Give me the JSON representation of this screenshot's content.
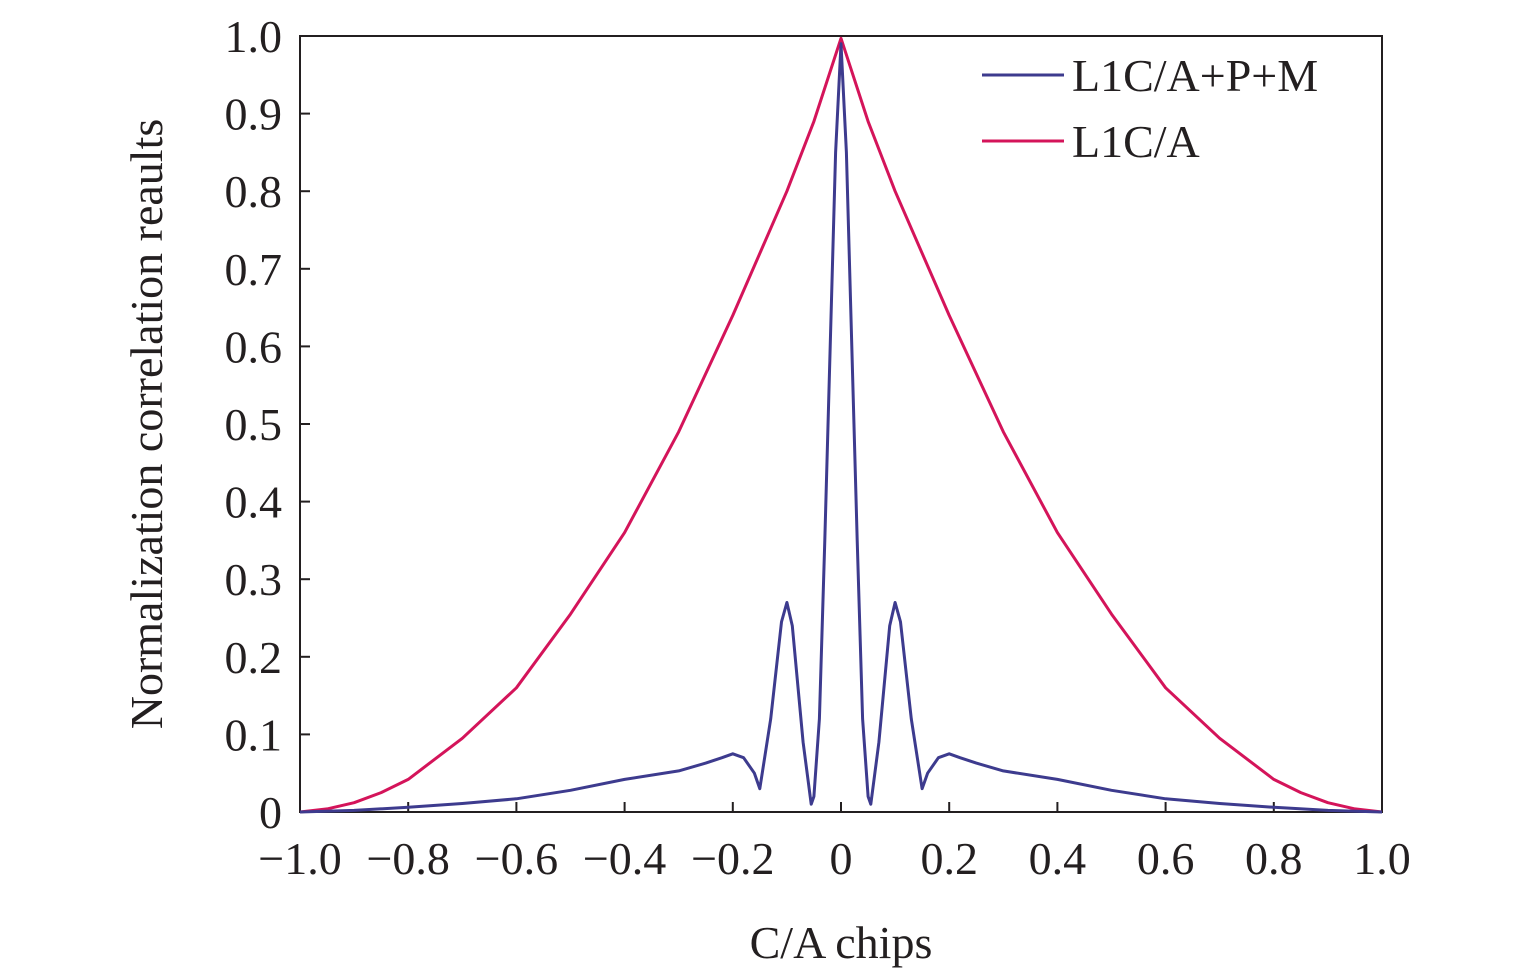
{
  "chart_data": {
    "type": "line",
    "title": "",
    "xlabel": "C/A chips",
    "ylabel": "Normalization correlation reaults",
    "xlim": [
      -1.0,
      1.0
    ],
    "ylim": [
      0,
      1.0
    ],
    "x_ticks": [
      -1.0,
      -0.8,
      -0.6,
      -0.4,
      -0.2,
      0,
      0.2,
      0.4,
      0.6,
      0.8,
      1.0
    ],
    "x_tick_labels": [
      "−1.0",
      "−0.8",
      "−0.6",
      "−0.4",
      "−0.2",
      "0",
      "0.2",
      "0.4",
      "0.6",
      "0.8",
      "1.0"
    ],
    "y_ticks": [
      0,
      0.1,
      0.2,
      0.3,
      0.4,
      0.5,
      0.6,
      0.7,
      0.8,
      0.9,
      1.0
    ],
    "y_tick_labels": [
      "0",
      "0.1",
      "0.2",
      "0.3",
      "0.4",
      "0.5",
      "0.6",
      "0.7",
      "0.8",
      "0.9",
      "1.0"
    ],
    "grid": false,
    "legend_position": "top-right",
    "series": [
      {
        "name": "L1C/A+P+M",
        "color": "#3d3b8e",
        "x": [
          -1.0,
          -0.9,
          -0.8,
          -0.7,
          -0.6,
          -0.5,
          -0.4,
          -0.3,
          -0.25,
          -0.22,
          -0.2,
          -0.18,
          -0.16,
          -0.15,
          -0.13,
          -0.11,
          -0.1,
          -0.09,
          -0.07,
          -0.055,
          -0.05,
          -0.04,
          -0.03,
          -0.02,
          -0.01,
          0,
          0.01,
          0.02,
          0.03,
          0.04,
          0.05,
          0.055,
          0.07,
          0.09,
          0.1,
          0.11,
          0.13,
          0.15,
          0.16,
          0.18,
          0.2,
          0.22,
          0.25,
          0.3,
          0.4,
          0.5,
          0.6,
          0.7,
          0.8,
          0.9,
          1.0
        ],
        "y": [
          0.0,
          0.002,
          0.006,
          0.011,
          0.017,
          0.028,
          0.042,
          0.053,
          0.063,
          0.07,
          0.075,
          0.07,
          0.05,
          0.03,
          0.12,
          0.245,
          0.27,
          0.24,
          0.09,
          0.01,
          0.02,
          0.12,
          0.35,
          0.6,
          0.85,
          0.99,
          0.85,
          0.6,
          0.35,
          0.12,
          0.02,
          0.01,
          0.09,
          0.24,
          0.27,
          0.245,
          0.12,
          0.03,
          0.05,
          0.07,
          0.075,
          0.07,
          0.063,
          0.053,
          0.042,
          0.028,
          0.017,
          0.011,
          0.006,
          0.002,
          0.0
        ]
      },
      {
        "name": "L1C/A",
        "color": "#d4145a",
        "x": [
          -1.0,
          -0.95,
          -0.9,
          -0.85,
          -0.8,
          -0.7,
          -0.6,
          -0.5,
          -0.4,
          -0.3,
          -0.2,
          -0.1,
          -0.05,
          0,
          0.05,
          0.1,
          0.2,
          0.3,
          0.4,
          0.5,
          0.6,
          0.7,
          0.8,
          0.85,
          0.9,
          0.95,
          1.0
        ],
        "y": [
          0.0,
          0.004,
          0.012,
          0.025,
          0.042,
          0.095,
          0.16,
          0.255,
          0.36,
          0.49,
          0.64,
          0.8,
          0.89,
          0.997,
          0.89,
          0.8,
          0.64,
          0.49,
          0.36,
          0.255,
          0.16,
          0.095,
          0.042,
          0.025,
          0.012,
          0.004,
          0.0
        ]
      }
    ]
  }
}
